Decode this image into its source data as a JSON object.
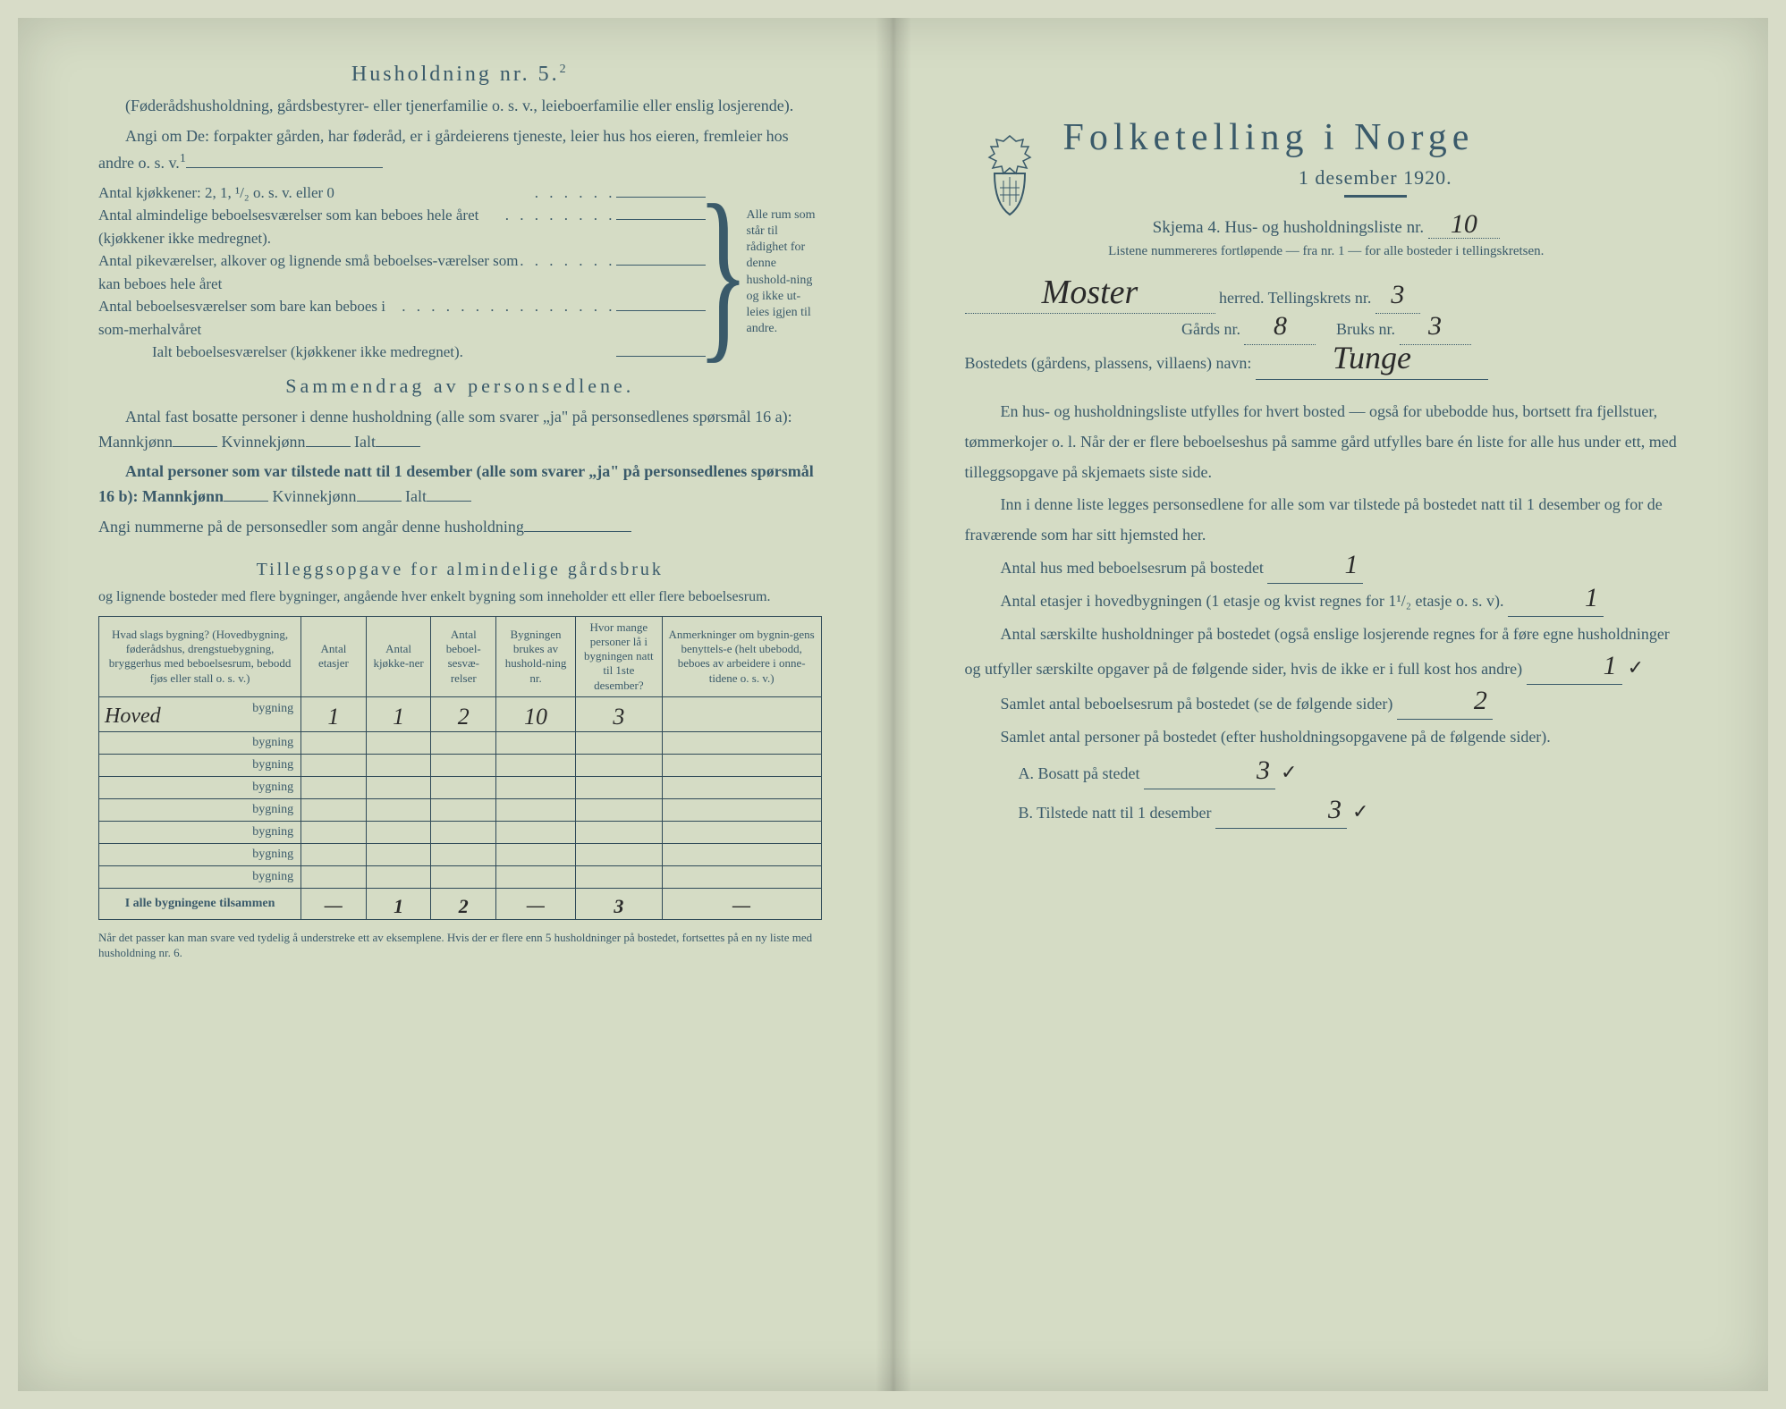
{
  "left": {
    "section1": {
      "title": "Husholdning nr. 5.",
      "title_sup": "2",
      "intro1": "(Føderådshusholdning, gårdsbestyrer- eller tjenerfamilie o. s. v., leieboerfamilie eller enslig losjerende).",
      "intro2": "Angi om De:  forpakter gården, har føderåd, er i gårdeierens tjeneste, leier hus hos eieren, fremleier hos andre o. s. v.",
      "sup1": "1",
      "kitchen_line": "Antal kjøkkener: 2, 1, ¹/₂ o. s. v. eller 0",
      "rows": [
        "Antal almindelige beboelsesværelser som kan beboes hele året (kjøkkener ikke medregnet).",
        "Antal pikeværelser, alkover og lignende små beboelses-værelser som kan beboes hele året",
        "Antal beboelsesværelser som bare kan beboes i som-merhalvåret"
      ],
      "ialt": "Ialt beboelsesværelser (kjøkkener ikke medregnet).",
      "brace_note": "Alle rum som står til rådighet for denne hushold-ning og ikke ut-leies igjen til andre."
    },
    "section2": {
      "title": "Sammendrag av personsedlene.",
      "line1a": "Antal fast bosatte personer i denne husholdning (alle som svarer „ja\" på personsedlenes spørsmål 16 a): Mannkjønn",
      "line1b": "Kvinnekjønn",
      "line1c": "Ialt",
      "line2a": "Antal personer som var tilstede natt til 1 desember (alle som svarer „ja\" på personsedlenes spørsmål 16 b): Mannkjønn",
      "line2b": "Kvinnekjønn",
      "line2c": "Ialt",
      "line3": "Angi nummerne på de personsedler som angår denne husholdning"
    },
    "section3": {
      "title": "Tilleggsopgave for almindelige gårdsbruk",
      "sub": "og lignende bosteder med flere bygninger, angående hver enkelt bygning som inneholder ett eller flere beboelsesrum.",
      "columns": [
        "Hvad slags bygning?\n(Hovedbygning, føderådshus, drengstuebygning, bryggerhus med beboelsesrum, bebodd fjøs eller stall o. s. v.)",
        "Antal etasjer",
        "Antal kjøkke-ner",
        "Antal beboel-sesvæ-relser",
        "Bygningen brukes av hushold-ning nr.",
        "Hvor mange personer lå i bygningen natt til 1ste desember?",
        "Anmerkninger om bygnin-gens benyttels-e (helt ubebodd, beboes av arbeidere i onne-tidene o. s. v.)"
      ],
      "rows": [
        {
          "prefix": "Hoved",
          "suffix": "bygning",
          "v": [
            "1",
            "1",
            "2",
            "10",
            "3",
            ""
          ]
        },
        {
          "prefix": "",
          "suffix": "bygning",
          "v": [
            "",
            "",
            "",
            "",
            "",
            ""
          ]
        },
        {
          "prefix": "",
          "suffix": "bygning",
          "v": [
            "",
            "",
            "",
            "",
            "",
            ""
          ]
        },
        {
          "prefix": "",
          "suffix": "bygning",
          "v": [
            "",
            "",
            "",
            "",
            "",
            ""
          ]
        },
        {
          "prefix": "",
          "suffix": "bygning",
          "v": [
            "",
            "",
            "",
            "",
            "",
            ""
          ]
        },
        {
          "prefix": "",
          "suffix": "bygning",
          "v": [
            "",
            "",
            "",
            "",
            "",
            ""
          ]
        },
        {
          "prefix": "",
          "suffix": "bygning",
          "v": [
            "",
            "",
            "",
            "",
            "",
            ""
          ]
        },
        {
          "prefix": "",
          "suffix": "bygning",
          "v": [
            "",
            "",
            "",
            "",
            "",
            ""
          ]
        }
      ],
      "total_label": "I alle bygningene tilsammen",
      "totals": [
        "—",
        "1",
        "2",
        "—",
        "3",
        "—"
      ],
      "footnote": "Når det passer kan man svare ved tydelig å understreke ett av eksemplene.\nHvis der er flere enn 5 husholdninger på bostedet, fortsettes på en ny liste med husholdning nr. 6."
    }
  },
  "right": {
    "title": "Folketelling i Norge",
    "date": "1 desember 1920.",
    "skjema_pre": "Skjema 4.  Hus- og husholdningsliste nr.",
    "liste_nr": "10",
    "listene": "Listene nummereres fortløpende — fra nr. 1 — for alle bosteder i tellingskretsen.",
    "herred_name": "Moster",
    "herred_label": "herred.  Tellingskrets nr.",
    "tellingskrets": "3",
    "gards_label": "Gårds nr.",
    "gards_nr": "8",
    "bruks_label": "Bruks nr.",
    "bruks_nr": "3",
    "bosted_label": "Bostedets (gårdens, plassens, villaens) navn:",
    "bosted_name": "Tunge",
    "para1": "En hus- og husholdningsliste utfylles for hvert bosted — også for ubebodde hus, bortsett fra fjellstuer, tømmerkojer o. l.  Når der er flere beboelseshus på samme gård utfylles bare én liste for alle hus under ett, med tilleggsopgave på skjemaets siste side.",
    "para2": "Inn i denne liste legges personsedlene for alle som var tilstede på bostedet natt til 1 desember og for de fraværende som har sitt hjemsted her.",
    "q1_label": "Antal hus med beboelsesrum på bostedet",
    "q1_val": "1",
    "q2_label_a": "Antal etasjer i hovedbygningen (1 etasje og kvist regnes for 1¹/₂ etasje o. s. v).",
    "q2_val": "1",
    "q3_label_a": "Antal særskilte husholdninger på bostedet (også enslige losjerende regnes for å føre egne husholdninger og utfyller særskilte opgaver på de følgende sider, hvis de ikke er i full kost hos andre)",
    "q3_val": "1",
    "q4_label": "Samlet antal beboelsesrum på bostedet (se de følgende sider)",
    "q4_val": "2",
    "q5_label": "Samlet antal personer på bostedet (efter husholdningsopgavene på de følgende sider).",
    "qa_label": "A.  Bosatt på stedet",
    "qa_val": "3",
    "qb_label": "B.  Tilstede natt til 1 desember",
    "qb_val": "3"
  },
  "colors": {
    "ink": "#3a5a6a",
    "hand": "#2a2a2a",
    "paper": "#d5dcc5"
  }
}
